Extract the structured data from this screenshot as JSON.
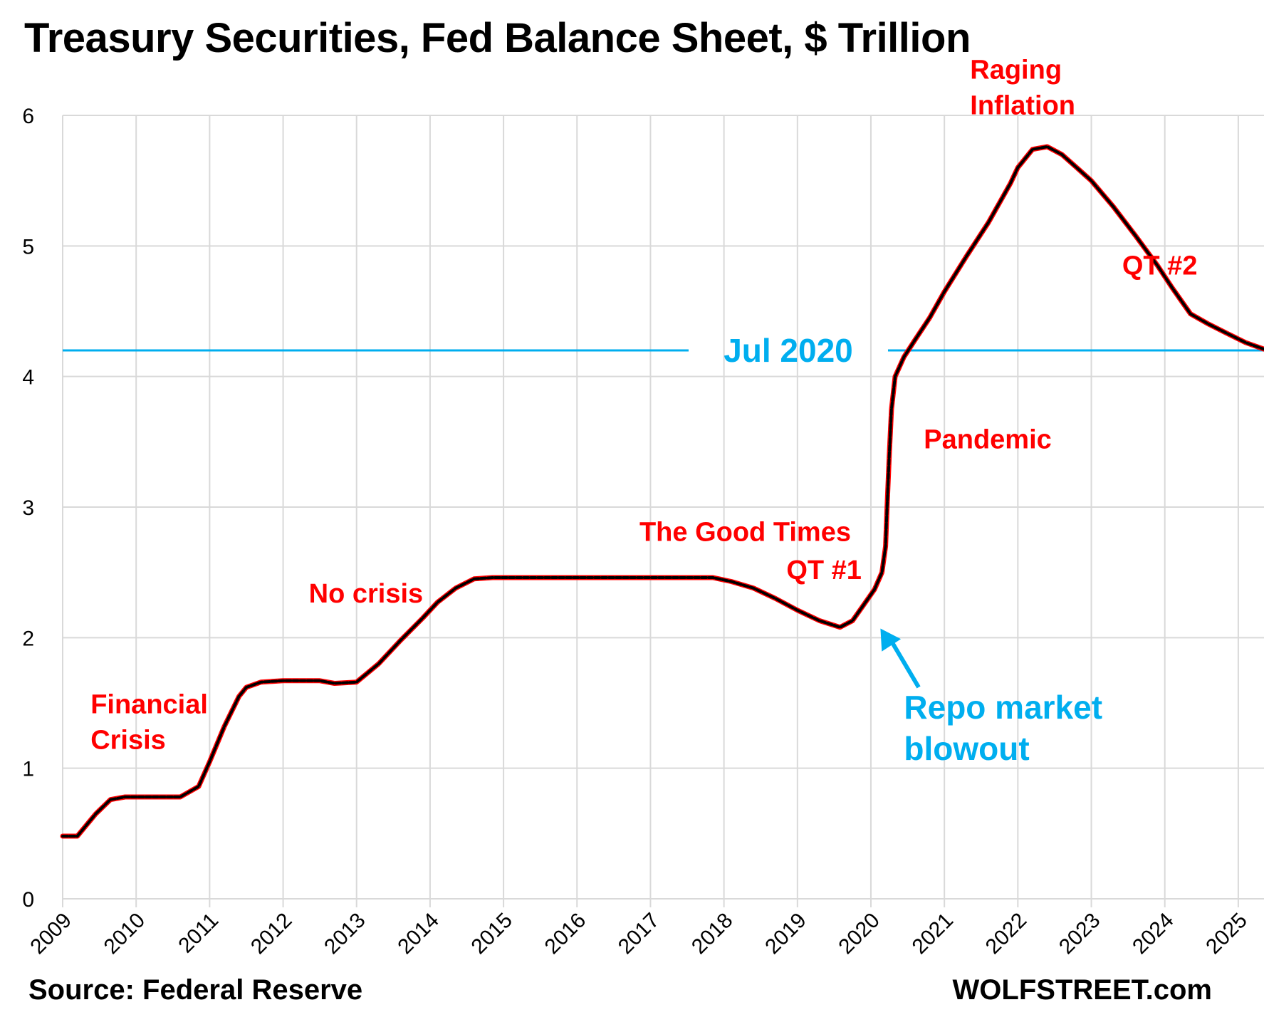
{
  "title": "Treasury Securities, Fed Balance Sheet, $ Trillion",
  "source": "Source: Federal Reserve",
  "brand": "WOLFSTREET.com",
  "colors": {
    "line": "#000000",
    "line_accent": "#ff0000",
    "annotation_red": "#ff0000",
    "annotation_blue": "#00aeef",
    "grid": "#d9d9d9",
    "reference_line": "#00aeef"
  },
  "chart_data": {
    "type": "line",
    "title": "Treasury Securities, Fed Balance Sheet, $ Trillion",
    "xlabel": "",
    "ylabel": "",
    "xlim": [
      2009,
      2025.35
    ],
    "ylim": [
      0,
      6
    ],
    "y_ticks": [
      "0",
      "1",
      "2",
      "3",
      "4",
      "5",
      "6"
    ],
    "x_ticks": [
      "2009",
      "2010",
      "2011",
      "2012",
      "2013",
      "2014",
      "2015",
      "2016",
      "2017",
      "2018",
      "2019",
      "2020",
      "2021",
      "2022",
      "2023",
      "2024",
      "2025"
    ],
    "grid": true,
    "legend": "none",
    "series": [
      {
        "points": [
          [
            2009.0,
            0.48
          ],
          [
            2009.2,
            0.48
          ],
          [
            2009.45,
            0.65
          ],
          [
            2009.65,
            0.76
          ],
          [
            2009.85,
            0.78
          ],
          [
            2010.3,
            0.78
          ],
          [
            2010.6,
            0.78
          ],
          [
            2010.85,
            0.86
          ],
          [
            2011.0,
            1.05
          ],
          [
            2011.2,
            1.32
          ],
          [
            2011.4,
            1.55
          ],
          [
            2011.5,
            1.62
          ],
          [
            2011.7,
            1.66
          ],
          [
            2012.0,
            1.67
          ],
          [
            2012.5,
            1.67
          ],
          [
            2012.7,
            1.65
          ],
          [
            2013.0,
            1.66
          ],
          [
            2013.3,
            1.8
          ],
          [
            2013.6,
            1.98
          ],
          [
            2013.9,
            2.15
          ],
          [
            2014.1,
            2.27
          ],
          [
            2014.35,
            2.38
          ],
          [
            2014.6,
            2.45
          ],
          [
            2014.85,
            2.46
          ],
          [
            2015.5,
            2.46
          ],
          [
            2016.5,
            2.46
          ],
          [
            2017.5,
            2.46
          ],
          [
            2017.85,
            2.46
          ],
          [
            2018.1,
            2.43
          ],
          [
            2018.4,
            2.38
          ],
          [
            2018.7,
            2.3
          ],
          [
            2019.0,
            2.21
          ],
          [
            2019.3,
            2.13
          ],
          [
            2019.58,
            2.08
          ],
          [
            2019.75,
            2.13
          ],
          [
            2019.9,
            2.25
          ],
          [
            2020.05,
            2.37
          ],
          [
            2020.15,
            2.5
          ],
          [
            2020.2,
            2.7
          ],
          [
            2020.22,
            3.0
          ],
          [
            2020.25,
            3.4
          ],
          [
            2020.28,
            3.75
          ],
          [
            2020.33,
            4.0
          ],
          [
            2020.45,
            4.15
          ],
          [
            2020.6,
            4.28
          ],
          [
            2020.8,
            4.45
          ],
          [
            2021.0,
            4.65
          ],
          [
            2021.3,
            4.92
          ],
          [
            2021.6,
            5.18
          ],
          [
            2021.9,
            5.48
          ],
          [
            2022.0,
            5.6
          ],
          [
            2022.2,
            5.74
          ],
          [
            2022.4,
            5.76
          ],
          [
            2022.6,
            5.7
          ],
          [
            2022.8,
            5.6
          ],
          [
            2023.0,
            5.5
          ],
          [
            2023.3,
            5.3
          ],
          [
            2023.6,
            5.08
          ],
          [
            2023.9,
            4.85
          ],
          [
            2024.1,
            4.68
          ],
          [
            2024.35,
            4.48
          ],
          [
            2024.6,
            4.4
          ],
          [
            2024.85,
            4.33
          ],
          [
            2025.1,
            4.26
          ],
          [
            2025.35,
            4.21
          ]
        ]
      }
    ],
    "reference_line": {
      "y": 4.2,
      "label": "Jul 2020"
    },
    "annotations": [
      {
        "text": [
          "Financial",
          "Crisis"
        ],
        "x": 2009.38,
        "y": 1.42,
        "color": "red"
      },
      {
        "text": [
          "No crisis"
        ],
        "x": 2012.35,
        "y": 2.27,
        "color": "red"
      },
      {
        "text": [
          "The Good Times"
        ],
        "x": 2016.85,
        "y": 2.74,
        "color": "red"
      },
      {
        "text": [
          "QT #1"
        ],
        "x": 2018.85,
        "y": 2.45,
        "color": "red"
      },
      {
        "text": [
          "Pandemic"
        ],
        "x": 2020.72,
        "y": 3.45,
        "color": "red"
      },
      {
        "text": [
          "Raging",
          "Inflation"
        ],
        "x": 2021.35,
        "y": 6.28,
        "color": "red"
      },
      {
        "text": [
          "QT #2"
        ],
        "x": 2023.42,
        "y": 4.78,
        "color": "red"
      },
      {
        "text": [
          "Repo market",
          "blowout"
        ],
        "x": 2020.45,
        "y": 1.38,
        "color": "blue"
      }
    ]
  }
}
